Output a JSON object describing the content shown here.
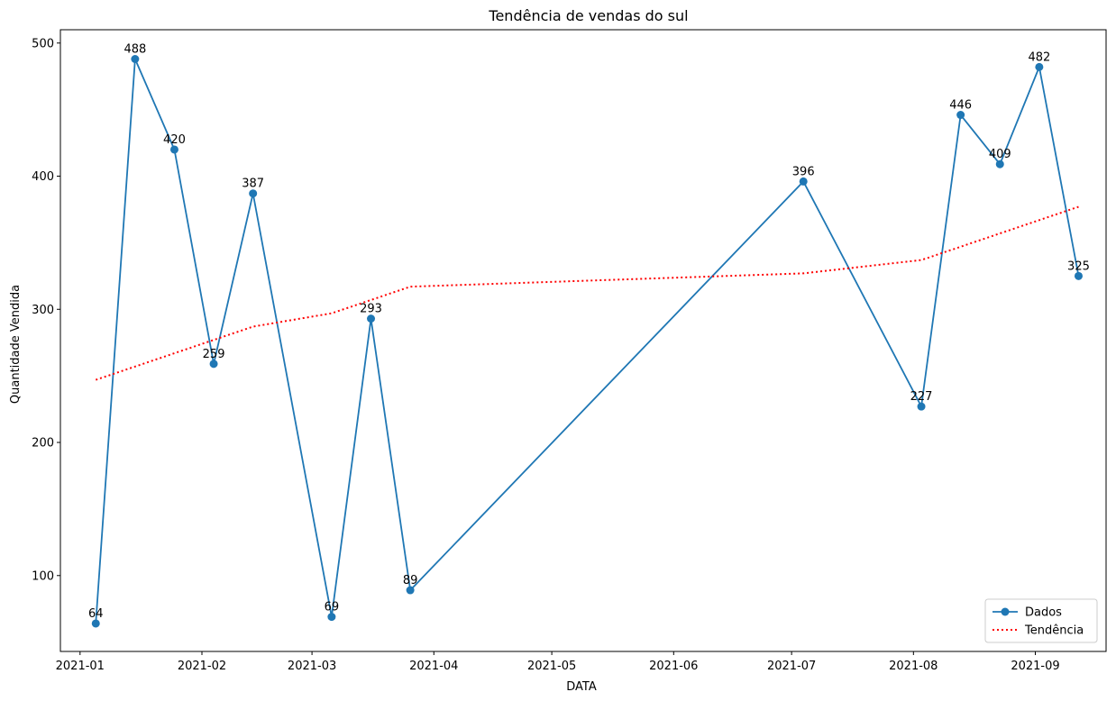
{
  "chart_data": {
    "type": "line",
    "title": "Tendência de vendas do sul",
    "xlabel": "DATA",
    "ylabel": "Quantidade Vendida",
    "x_axis_type": "date",
    "xlim": [
      "2020-12-27",
      "2021-09-19"
    ],
    "ylim": [
      43,
      510
    ],
    "x_ticks": [
      "2021-01-01",
      "2021-02-01",
      "2021-03-01",
      "2021-04-01",
      "2021-05-01",
      "2021-06-01",
      "2021-07-01",
      "2021-08-01",
      "2021-09-01"
    ],
    "x_tick_labels": [
      "2021-01",
      "2021-02",
      "2021-03",
      "2021-04",
      "2021-05",
      "2021-06",
      "2021-07",
      "2021-08",
      "2021-09"
    ],
    "y_ticks": [
      100,
      200,
      300,
      400,
      500
    ],
    "y_tick_labels": [
      "100",
      "200",
      "300",
      "400",
      "500"
    ],
    "grid": false,
    "legend_position": "lower-right",
    "series": [
      {
        "name": "Dados",
        "style": "solid-line-with-circle-markers",
        "color": "#1f77b4",
        "x": [
          "2021-01-05",
          "2021-01-15",
          "2021-01-25",
          "2021-02-04",
          "2021-02-14",
          "2021-03-06",
          "2021-03-16",
          "2021-03-26",
          "2021-07-04",
          "2021-08-03",
          "2021-08-13",
          "2021-08-23",
          "2021-09-02",
          "2021-09-12"
        ],
        "y": [
          64,
          488,
          420,
          259,
          387,
          69,
          293,
          89,
          396,
          227,
          446,
          409,
          482,
          325
        ],
        "data_labels": [
          "64",
          "488",
          "420",
          "259",
          "387",
          "69",
          "293",
          "89",
          "396",
          "227",
          "446",
          "409",
          "482",
          "325"
        ]
      },
      {
        "name": "Tendência",
        "style": "dotted-line",
        "color": "#ff0000",
        "x": [
          "2021-01-05",
          "2021-01-15",
          "2021-01-25",
          "2021-02-04",
          "2021-02-14",
          "2021-03-06",
          "2021-03-16",
          "2021-03-26",
          "2021-07-04",
          "2021-08-03",
          "2021-08-13",
          "2021-08-23",
          "2021-09-02",
          "2021-09-12"
        ],
        "y": [
          247,
          257,
          267,
          277,
          287,
          297,
          307,
          317,
          327,
          337,
          347,
          357,
          367,
          377
        ]
      }
    ]
  }
}
